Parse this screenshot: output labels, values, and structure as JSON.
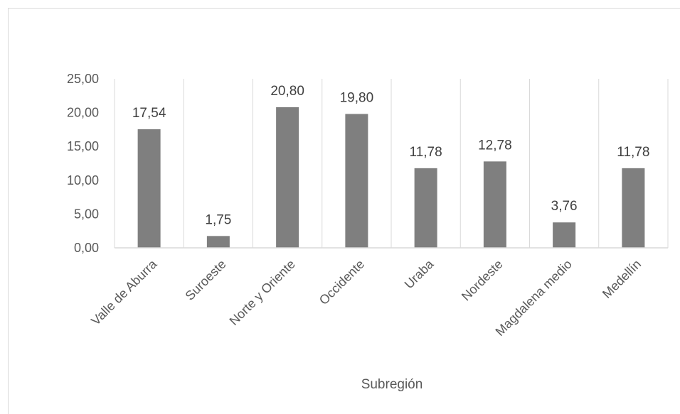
{
  "chart_data": {
    "type": "bar",
    "categories": [
      "Valle de Aburra",
      "Suroeste",
      "Norte y Oriente",
      "Occidente",
      "Uraba",
      "Nordeste",
      "Magdalena medio",
      "Medellín"
    ],
    "values": [
      17.54,
      1.75,
      20.8,
      19.8,
      11.78,
      12.78,
      3.76,
      11.78
    ],
    "value_labels": [
      "17,54",
      "1,75",
      "20,80",
      "19,80",
      "11,78",
      "12,78",
      "3,76",
      "11,78"
    ],
    "y_ticks": [
      "0,00",
      "5,00",
      "10,00",
      "15,00",
      "20,00",
      "25,00"
    ],
    "ylim": [
      0,
      25
    ],
    "xlabel": "Subregión",
    "ylabel": "",
    "title": "",
    "grid": "vertical category separators",
    "bar_color": "#7f7f7f",
    "gridline_color": "#d9d9d9"
  }
}
